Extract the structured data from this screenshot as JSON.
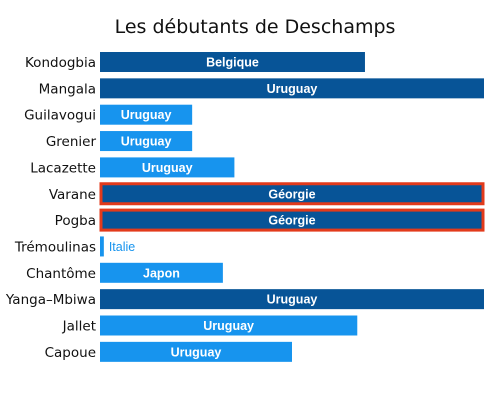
{
  "chart_data": {
    "type": "bar",
    "orientation": "horizontal",
    "title": "Les débutants de Deschamps",
    "xlabel": "",
    "ylabel": "",
    "colors": {
      "dark": "#075497",
      "light": "#1794ee",
      "highlight_border": "#e23a1b"
    },
    "categories": [
      "Kondogbia",
      "Mangala",
      "Guilavogui",
      "Grenier",
      "Lacazette",
      "Varane",
      "Pogba",
      "Trémoulinas",
      "Chantôme",
      "Yanga–Mbiwa",
      "Jallet",
      "Capoue"
    ],
    "values": [
      69,
      100,
      24,
      24,
      35,
      100,
      100,
      1,
      32,
      100,
      67,
      50
    ],
    "bar_labels": [
      "Belgique",
      "Uruguay",
      "Uruguay",
      "Uruguay",
      "Uruguay",
      "Géorgie",
      "Géorgie",
      "Italie",
      "Japon",
      "Uruguay",
      "Uruguay",
      "Uruguay"
    ],
    "bar_shades": [
      "dark",
      "dark",
      "light",
      "light",
      "light",
      "dark",
      "dark",
      "light",
      "light",
      "dark",
      "light",
      "light"
    ],
    "highlighted": [
      false,
      false,
      false,
      false,
      false,
      true,
      true,
      false,
      false,
      false,
      false,
      false
    ],
    "xlim": [
      0,
      100
    ]
  }
}
